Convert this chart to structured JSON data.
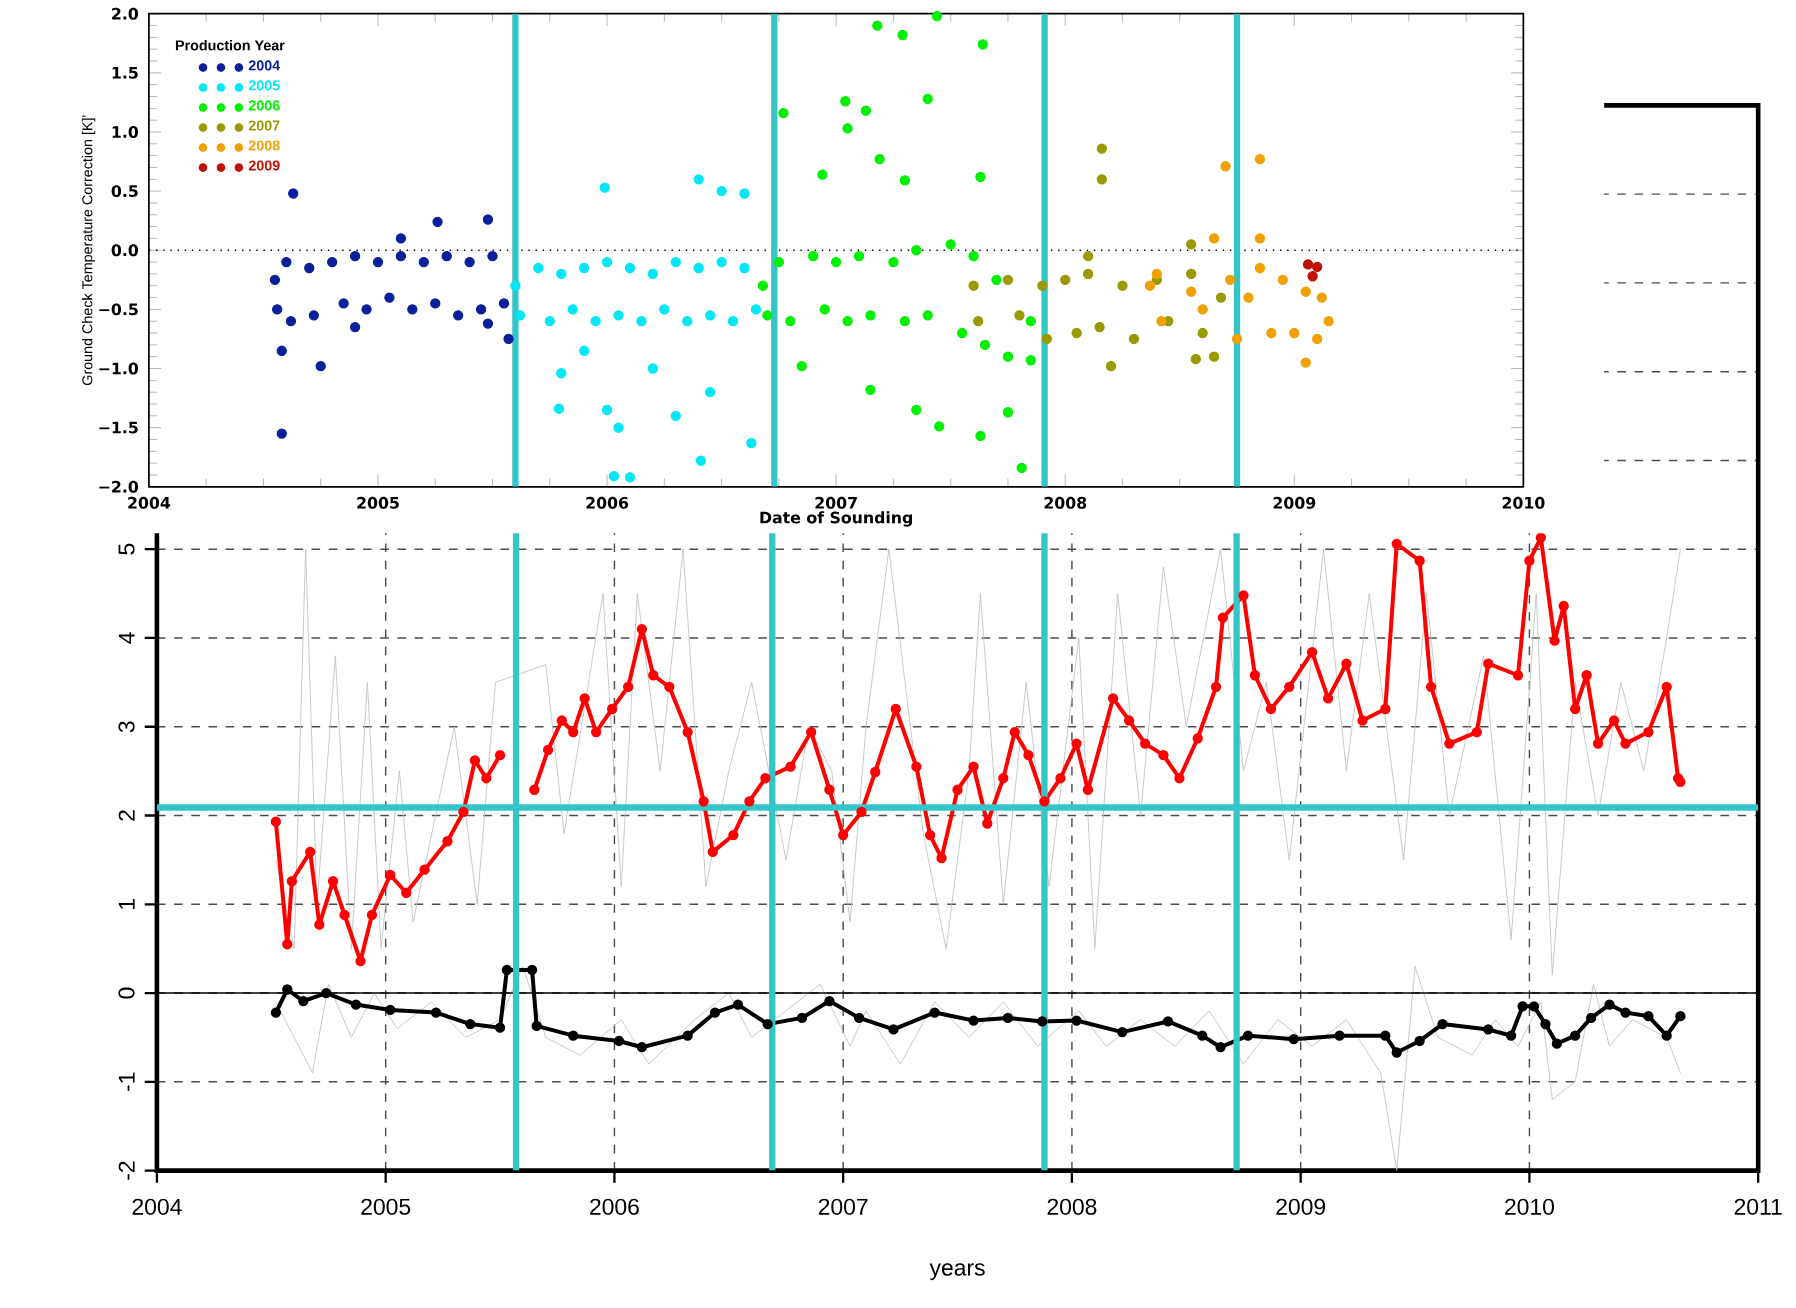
{
  "chart_data": [
    {
      "type": "scatter",
      "xlabel": "Date of Sounding",
      "ylabel": "Ground Check Temperature Correction [K]'",
      "legend_title": "Production Year",
      "legend": "top left",
      "marker": "circle",
      "xlim": [
        2004,
        2010
      ],
      "ylim": [
        -2,
        2
      ],
      "xticks": [
        2004,
        2005,
        2006,
        2007,
        2008,
        2009,
        2010
      ],
      "yticks": [
        {
          "value": -2,
          "label": "−2.0"
        },
        {
          "value": -1.5,
          "label": "−1.5"
        },
        {
          "value": -1,
          "label": "−1.0"
        },
        {
          "value": -0.5,
          "label": "−0.5"
        },
        {
          "value": 0,
          "label": "0.0"
        },
        {
          "value": 0.5,
          "label": "0.5"
        },
        {
          "value": 1,
          "label": "1.0"
        },
        {
          "value": 1.5,
          "label": "1.5"
        },
        {
          "value": 2,
          "label": "2.0"
        }
      ],
      "ref_lines": [
        {
          "axis": "y",
          "value": 0,
          "color": "#000000",
          "line_style": "dotted"
        },
        {
          "axis": "x",
          "value": 2005.6,
          "color": "#33c5c8",
          "line_style": "solid"
        },
        {
          "axis": "x",
          "value": 2006.73,
          "color": "#33c5c8",
          "line_style": "solid"
        },
        {
          "axis": "x",
          "value": 2007.91,
          "color": "#33c5c8",
          "line_style": "solid"
        },
        {
          "axis": "x",
          "value": 2008.75,
          "color": "#33c5c8",
          "line_style": "solid"
        }
      ],
      "series": [
        {
          "name": "2004",
          "color": "#0a1f9a",
          "x": [
            2004.55,
            2004.56,
            2004.6,
            2004.62,
            2004.7,
            2004.72,
            2004.8,
            2004.85,
            2004.9,
            2004.95,
            2005.0,
            2005.05,
            2005.1,
            2005.15,
            2005.2,
            2005.25,
            2005.3,
            2005.35,
            2005.4,
            2005.45,
            2005.5,
            2005.55,
            2004.63,
            2004.58,
            2004.58,
            2004.75,
            2004.9,
            2005.26,
            2005.48,
            2005.1,
            2005.57,
            2005.48
          ],
          "values": [
            -0.25,
            -0.5,
            -0.1,
            -0.6,
            -0.15,
            -0.55,
            -0.1,
            -0.45,
            -0.05,
            -0.5,
            -0.1,
            -0.4,
            -0.05,
            -0.5,
            -0.1,
            -0.45,
            -0.05,
            -0.55,
            -0.1,
            -0.5,
            -0.05,
            -0.45,
            0.48,
            -1.55,
            -0.85,
            -0.98,
            -0.65,
            0.24,
            0.26,
            0.1,
            -0.75,
            -0.62
          ]
        },
        {
          "name": "2005",
          "color": "#00e8f5",
          "x": [
            2005.6,
            2005.62,
            2005.7,
            2005.75,
            2005.8,
            2005.85,
            2005.9,
            2005.95,
            2006.0,
            2006.05,
            2006.1,
            2006.15,
            2006.2,
            2006.25,
            2006.3,
            2006.35,
            2006.4,
            2006.45,
            2006.5,
            2006.55,
            2006.6,
            2006.65,
            2005.99,
            2006.4,
            2006.6,
            2006.5,
            2005.79,
            2006.03,
            2006.1,
            2006.41,
            2006.63,
            2005.8,
            2006.05,
            2006.3,
            2006.0,
            2006.45,
            2006.2,
            2005.9
          ],
          "values": [
            -0.3,
            -0.55,
            -0.15,
            -0.6,
            -0.2,
            -0.5,
            -0.15,
            -0.6,
            -0.1,
            -0.55,
            -0.15,
            -0.6,
            -0.2,
            -0.5,
            -0.1,
            -0.6,
            -0.15,
            -0.55,
            -0.1,
            -0.6,
            -0.15,
            -0.5,
            0.53,
            0.6,
            0.48,
            0.5,
            -1.34,
            -1.91,
            -1.92,
            -1.78,
            -1.63,
            -1.04,
            -1.5,
            -1.4,
            -1.35,
            -1.2,
            -1.0,
            -0.85
          ]
        },
        {
          "name": "2006",
          "color": "#00f000",
          "x": [
            2006.68,
            2006.7,
            2006.75,
            2006.8,
            2006.9,
            2006.95,
            2007.0,
            2007.05,
            2007.1,
            2007.15,
            2007.25,
            2007.3,
            2007.35,
            2007.4,
            2007.5,
            2007.55,
            2007.6,
            2007.65,
            2007.7,
            2007.75,
            2007.85,
            2007.18,
            2007.44,
            2007.29,
            2007.64,
            2007.4,
            2006.77,
            2007.04,
            2007.13,
            2007.05,
            2007.19,
            2007.3,
            2007.63,
            2006.94,
            2007.81,
            2007.63,
            2007.45,
            2007.35,
            2007.15,
            2006.85,
            2007.75,
            2007.85
          ],
          "values": [
            -0.3,
            -0.55,
            -0.1,
            -0.6,
            -0.05,
            -0.5,
            -0.1,
            -0.6,
            -0.05,
            -0.55,
            -0.1,
            -0.6,
            0.0,
            -0.55,
            0.05,
            -0.7,
            -0.05,
            -0.8,
            -0.25,
            -0.9,
            -0.6,
            1.9,
            1.98,
            1.82,
            1.74,
            1.28,
            1.16,
            1.26,
            1.18,
            1.03,
            0.77,
            0.59,
            0.62,
            0.64,
            -1.84,
            -1.57,
            -1.49,
            -1.35,
            -1.18,
            -0.98,
            -1.37,
            -0.93
          ]
        },
        {
          "name": "2007",
          "color": "#999900",
          "x": [
            2007.6,
            2007.62,
            2007.75,
            2007.8,
            2007.9,
            2007.92,
            2008.0,
            2008.05,
            2008.1,
            2008.15,
            2008.25,
            2008.3,
            2008.4,
            2008.45,
            2008.55,
            2008.6,
            2008.65,
            2008.68,
            2008.16,
            2008.16,
            2008.55,
            2008.2,
            2008.57,
            2008.1
          ],
          "values": [
            -0.3,
            -0.6,
            -0.25,
            -0.55,
            -0.3,
            -0.75,
            -0.25,
            -0.7,
            -0.2,
            -0.65,
            -0.3,
            -0.75,
            -0.25,
            -0.6,
            -0.2,
            -0.7,
            -0.9,
            -0.4,
            0.86,
            0.6,
            0.05,
            -0.98,
            -0.92,
            -0.05
          ]
        },
        {
          "name": "2008",
          "color": "#f0a000",
          "x": [
            2008.37,
            2008.4,
            2008.42,
            2008.55,
            2008.6,
            2008.72,
            2008.75,
            2008.8,
            2008.85,
            2008.9,
            2008.95,
            2009.0,
            2009.05,
            2009.1,
            2009.12,
            2009.15,
            2008.7,
            2008.85,
            2008.85,
            2009.05,
            2008.65
          ],
          "values": [
            -0.3,
            -0.2,
            -0.6,
            -0.35,
            -0.5,
            -0.25,
            -0.75,
            -0.4,
            -0.15,
            -0.7,
            -0.25,
            -0.7,
            -0.35,
            -0.75,
            -0.4,
            -0.6,
            0.71,
            0.77,
            0.1,
            -0.95,
            0.1
          ]
        },
        {
          "name": "2009",
          "color": "#c01000",
          "x": [
            2009.06,
            2009.1,
            2009.08
          ],
          "values": [
            -0.12,
            -0.14,
            -0.22
          ]
        }
      ]
    },
    {
      "type": "line",
      "xlabel": "years",
      "grid": true,
      "xlim": [
        2004,
        2011
      ],
      "ylim": [
        -2,
        10
      ],
      "xticks": [
        2004,
        2005,
        2006,
        2007,
        2008,
        2009,
        2010,
        2011
      ],
      "yticks": [
        -2,
        -1,
        0,
        1,
        2,
        3,
        4,
        5,
        {
          "value": 6,
          "label": null
        },
        {
          "value": 7,
          "label": null
        },
        {
          "value": 8,
          "label": null
        },
        {
          "value": 9,
          "label": null
        },
        {
          "value": 10,
          "label": null
        }
      ],
      "ref_lines": [
        {
          "axis": "y",
          "value": 0,
          "color": "#000000",
          "line_style": "solid"
        },
        {
          "axis": "y",
          "value": 2.09,
          "color": "#33c5c8",
          "line_style": "solid"
        },
        {
          "axis": "x",
          "value": 2005.57,
          "color": "#33c5c8",
          "line_style": "solid"
        },
        {
          "axis": "x",
          "value": 2006.69,
          "color": "#33c5c8",
          "line_style": "solid"
        },
        {
          "axis": "x",
          "value": 2007.88,
          "color": "#33c5c8",
          "line_style": "solid"
        },
        {
          "axis": "x",
          "value": 2008.72,
          "color": "#33c5c8",
          "line_style": "solid"
        }
      ],
      "series": [
        {
          "color": "#c0c0c0",
          "marker": "none",
          "x": [
            2004.52,
            2004.6,
            2004.65,
            2004.7,
            2004.78,
            2004.85,
            2004.92,
            2004.98,
            2005.06,
            2005.12,
            2005.3,
            2005.4,
            2005.48,
            2005.7,
            2005.78,
            2005.95,
            2006.03,
            2006.1,
            2006.2,
            2006.3,
            2006.4,
            2006.5,
            2006.6,
            2006.75,
            2006.85,
            2006.95,
            2007.03,
            2007.1,
            2007.2,
            2007.35,
            2007.45,
            2007.55,
            2007.6,
            2007.7,
            2007.8,
            2007.9,
            2008.03,
            2008.1,
            2008.2,
            2008.3,
            2008.4,
            2008.5,
            2008.65,
            2008.75,
            2008.85,
            2008.95,
            2009.1,
            2009.2,
            2009.3,
            2009.45,
            2009.55,
            2009.65,
            2009.8,
            2009.92,
            2010.03,
            2010.1,
            2010.2,
            2010.3,
            2010.4,
            2010.5,
            2010.6,
            2010.66
          ],
          "values": [
            1.5,
            0.5,
            5.0,
            1.0,
            3.8,
            0.5,
            3.5,
            0.5,
            2.5,
            0.8,
            3.0,
            1.0,
            3.5,
            3.7,
            1.8,
            4.5,
            1.2,
            4.5,
            2.5,
            5.0,
            1.2,
            2.5,
            3.5,
            1.5,
            3.0,
            2.5,
            0.8,
            3.0,
            5.0,
            1.8,
            0.5,
            2.5,
            4.5,
            1.0,
            3.5,
            1.2,
            4.0,
            0.5,
            4.5,
            2.0,
            4.8,
            3.0,
            5.0,
            2.5,
            3.5,
            1.5,
            5.0,
            2.5,
            4.5,
            1.5,
            4.5,
            2.0,
            3.8,
            0.6,
            4.5,
            0.2,
            3.5,
            2.0,
            3.5,
            2.5,
            4.0,
            5.0
          ]
        },
        {
          "color": "#c0c0c0",
          "marker": "none",
          "x": [
            2004.52,
            2004.62,
            2004.68,
            2004.75,
            2004.85,
            2004.95,
            2005.05,
            2005.2,
            2005.35,
            2005.5,
            2005.6,
            2005.7,
            2005.85,
            2006.03,
            2006.15,
            2006.35,
            2006.5,
            2006.6,
            2006.75,
            2006.9,
            2007.03,
            2007.1,
            2007.25,
            2007.4,
            2007.55,
            2007.7,
            2007.85,
            2008.03,
            2008.15,
            2008.3,
            2008.45,
            2008.6,
            2008.75,
            2008.9,
            2009.05,
            2009.2,
            2009.35,
            2009.42,
            2009.5,
            2009.6,
            2009.75,
            2009.85,
            2009.95,
            2010.05,
            2010.1,
            2010.2,
            2010.28,
            2010.35,
            2010.45,
            2010.6,
            2010.66
          ],
          "values": [
            -0.1,
            -0.6,
            -0.9,
            0.1,
            -0.5,
            0.0,
            -0.4,
            -0.1,
            -0.5,
            -0.3,
            0.3,
            -0.5,
            -0.7,
            -0.3,
            -0.8,
            -0.3,
            0.0,
            -0.5,
            -0.2,
            0.1,
            -0.6,
            -0.2,
            -0.8,
            -0.1,
            -0.5,
            -0.1,
            -0.6,
            -0.2,
            -0.6,
            -0.3,
            -0.6,
            -0.2,
            -0.8,
            -0.3,
            -0.6,
            -0.3,
            -0.9,
            -2.0,
            0.3,
            -0.5,
            -0.7,
            -0.3,
            -0.6,
            -0.1,
            -1.2,
            -1.0,
            0.1,
            -0.6,
            -0.3,
            -0.5,
            -0.9
          ]
        },
        {
          "color": "#ff0000",
          "marker": "circle",
          "x": [
            2004.52,
            2004.57,
            2004.59,
            2004.67,
            2004.71,
            2004.77,
            2004.82,
            2004.89,
            2004.94,
            2005.02,
            2005.09,
            2005.17,
            2005.27,
            2005.34,
            2005.39,
            2005.44,
            2005.5,
            2005.53,
            2005.65,
            2005.71,
            2005.77,
            2005.82,
            2005.87,
            2005.92,
            2005.99,
            2006.06,
            2006.12,
            2006.17,
            2006.24,
            2006.32,
            2006.39,
            2006.43,
            2006.52,
            2006.59,
            2006.66,
            2006.77,
            2006.86,
            2006.94,
            2007.0,
            2007.08,
            2007.14,
            2007.23,
            2007.32,
            2007.38,
            2007.43,
            2007.5,
            2007.57,
            2007.63,
            2007.7,
            2007.75,
            2007.81,
            2007.88,
            2007.95,
            2008.02,
            2008.07,
            2008.18,
            2008.25,
            2008.32,
            2008.4,
            2008.47,
            2008.55,
            2008.63,
            2008.66,
            2008.75,
            2008.8,
            2008.87,
            2008.95,
            2009.05,
            2009.12,
            2009.2,
            2009.27,
            2009.37,
            2009.42,
            2009.52,
            2009.57,
            2009.65,
            2009.77,
            2009.82,
            2009.95,
            2010.0,
            2010.05,
            2010.11,
            2010.15,
            2010.2,
            2010.25,
            2010.3,
            2010.37,
            2010.42,
            2010.52,
            2010.6,
            2010.65,
            2010.66
          ],
          "values": [
            1.93,
            0.55,
            1.26,
            1.59,
            0.77,
            1.26,
            0.88,
            0.36,
            0.88,
            1.33,
            1.13,
            1.39,
            1.71,
            2.04,
            2.62,
            2.42,
            2.68,
            null,
            2.29,
            2.74,
            3.07,
            2.94,
            3.32,
            2.94,
            3.2,
            3.45,
            4.1,
            3.58,
            3.45,
            2.94,
            2.16,
            1.59,
            1.78,
            2.16,
            2.42,
            2.55,
            2.94,
            2.29,
            1.78,
            2.04,
            2.49,
            3.2,
            2.55,
            1.78,
            1.52,
            2.29,
            2.55,
            1.91,
            2.42,
            2.94,
            2.68,
            2.16,
            2.42,
            2.81,
            2.29,
            3.32,
            3.07,
            2.81,
            2.68,
            2.42,
            2.87,
            3.45,
            4.23,
            4.48,
            3.58,
            3.2,
            3.45,
            3.84,
            3.32,
            3.71,
            3.07,
            3.2,
            5.06,
            4.87,
            3.45,
            2.81,
            2.94,
            3.71,
            3.58,
            4.87,
            5.13,
            3.97,
            4.36,
            3.2,
            3.58,
            2.81,
            3.07,
            2.81,
            2.94,
            3.45,
            2.42,
            2.38
          ]
        },
        {
          "color": "#000000",
          "marker": "circle",
          "x": [
            2004.52,
            2004.57,
            2004.64,
            2004.74,
            2004.87,
            2005.02,
            2005.22,
            2005.37,
            2005.5,
            2005.53,
            2005.64,
            2005.66,
            2005.82,
            2006.02,
            2006.12,
            2006.32,
            2006.44,
            2006.54,
            2006.67,
            2006.82,
            2006.94,
            2007.07,
            2007.22,
            2007.4,
            2007.57,
            2007.72,
            2007.87,
            2008.02,
            2008.22,
            2008.42,
            2008.57,
            2008.65,
            2008.77,
            2008.97,
            2009.17,
            2009.37,
            2009.42,
            2009.52,
            2009.62,
            2009.82,
            2009.92,
            2009.97,
            2010.02,
            2010.07,
            2010.12,
            2010.2,
            2010.27,
            2010.35,
            2010.42,
            2010.52,
            2010.6,
            2010.66
          ],
          "values": [
            -0.22,
            0.04,
            -0.09,
            0.0,
            -0.13,
            -0.19,
            -0.22,
            -0.35,
            -0.39,
            0.26,
            0.26,
            -0.37,
            -0.48,
            -0.54,
            -0.61,
            -0.48,
            -0.22,
            -0.13,
            -0.35,
            -0.28,
            -0.09,
            -0.28,
            -0.41,
            -0.22,
            -0.31,
            -0.28,
            -0.32,
            -0.31,
            -0.44,
            -0.32,
            -0.48,
            -0.61,
            -0.48,
            -0.52,
            -0.48,
            -0.48,
            -0.67,
            -0.54,
            -0.35,
            -0.41,
            -0.48,
            -0.15,
            -0.15,
            -0.35,
            -0.57,
            -0.48,
            -0.28,
            -0.13,
            -0.22,
            -0.26,
            -0.48,
            -0.26
          ]
        }
      ]
    }
  ]
}
